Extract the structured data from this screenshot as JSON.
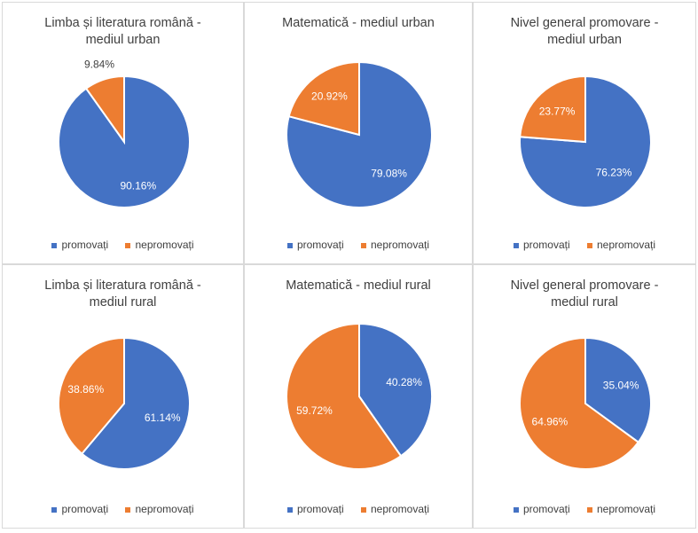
{
  "colors": {
    "promovati": "#4472C4",
    "nepromovati": "#ED7D31",
    "label_dark": "#404040",
    "label_light": "#ffffff"
  },
  "legend": {
    "promovati": "promovați",
    "nepromovati": "nepromovați"
  },
  "chart_data": [
    {
      "type": "pie",
      "title_lines": [
        "Limba și literatura română -",
        "mediul urban"
      ],
      "categories": [
        "promovați",
        "nepromovați"
      ],
      "values": [
        90.16,
        9.84
      ],
      "labels": [
        "90.16%",
        "9.84%"
      ]
    },
    {
      "type": "pie",
      "title_lines": [
        "Matematică - mediul urban"
      ],
      "categories": [
        "promovați",
        "nepromovați"
      ],
      "values": [
        79.08,
        20.92
      ],
      "labels": [
        "79.08%",
        "20.92%"
      ]
    },
    {
      "type": "pie",
      "title_lines": [
        "Nivel general promovare -",
        "mediul urban"
      ],
      "categories": [
        "promovați",
        "nepromovați"
      ],
      "values": [
        76.23,
        23.77
      ],
      "labels": [
        "76.23%",
        "23.77%"
      ]
    },
    {
      "type": "pie",
      "title_lines": [
        "Limba și literatura română -",
        "mediul rural"
      ],
      "categories": [
        "promovați",
        "nepromovați"
      ],
      "values": [
        61.14,
        38.86
      ],
      "labels": [
        "61.14%",
        "38.86%"
      ]
    },
    {
      "type": "pie",
      "title_lines": [
        "Matematică - mediul rural"
      ],
      "categories": [
        "promovați",
        "nepromovați"
      ],
      "values": [
        40.28,
        59.72
      ],
      "labels": [
        "40.28%",
        "59.72%"
      ]
    },
    {
      "type": "pie",
      "title_lines": [
        "Nivel general promovare -",
        "mediul rural"
      ],
      "categories": [
        "promovați",
        "nepromovați"
      ],
      "values": [
        35.04,
        64.96
      ],
      "labels": [
        "35.04%",
        "64.96%"
      ]
    }
  ]
}
